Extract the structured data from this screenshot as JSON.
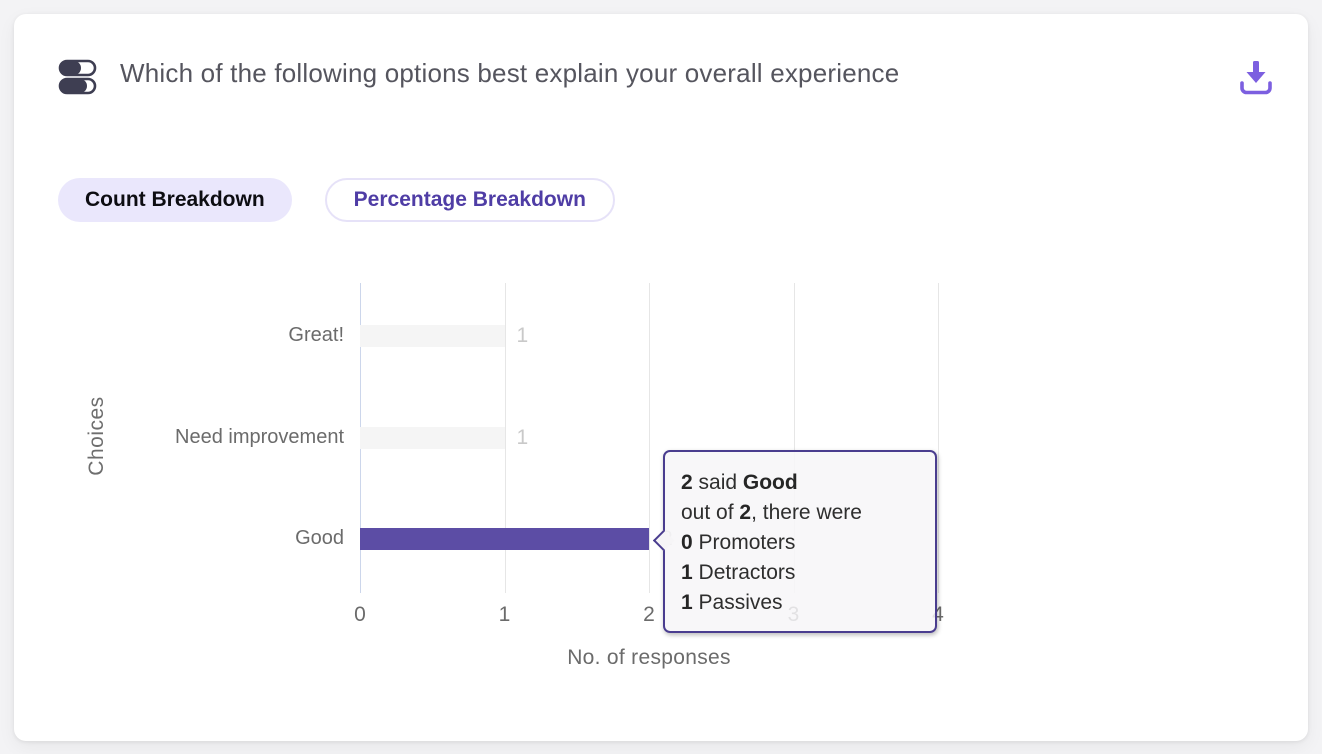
{
  "header": {
    "title": "Which of the following options best explain your overall experience",
    "question_icon": "toggle-options-icon",
    "download_icon": "download-icon"
  },
  "tabs": {
    "count_label": "Count Breakdown",
    "percentage_label": "Percentage Breakdown",
    "active_tab": "Count Breakdown"
  },
  "chart_data": {
    "type": "bar",
    "orientation": "horizontal",
    "categories": [
      "Great!",
      "Need improvement",
      "Good"
    ],
    "values": [
      1,
      1,
      2
    ],
    "value_labels": [
      "1",
      "1",
      "2"
    ],
    "bar_colors": [
      "#f5f5f5",
      "#f5f5f5",
      "#5c4da5"
    ],
    "xlabel": "No. of responses",
    "ylabel": "Choices",
    "xlim": [
      0,
      4
    ],
    "xticks": [
      "0",
      "1",
      "2",
      "3",
      "4"
    ],
    "grid": "vertical-only",
    "legend": "none"
  },
  "tooltip": {
    "attached_to": "Good",
    "lines": [
      {
        "parts": [
          {
            "text": "2",
            "bold": true
          },
          {
            "text": " said ",
            "bold": false
          },
          {
            "text": "Good",
            "bold": true
          }
        ]
      },
      {
        "parts": [
          {
            "text": "out of ",
            "bold": false
          },
          {
            "text": "2",
            "bold": true
          },
          {
            "text": ", there were",
            "bold": false
          }
        ]
      },
      {
        "parts": [
          {
            "text": "0",
            "bold": true
          },
          {
            "text": " Promoters",
            "bold": false
          }
        ]
      },
      {
        "parts": [
          {
            "text": "1",
            "bold": true
          },
          {
            "text": " Detractors",
            "bold": false
          }
        ]
      },
      {
        "parts": [
          {
            "text": "1",
            "bold": true
          },
          {
            "text": " Passives",
            "bold": false
          }
        ]
      }
    ]
  },
  "colors": {
    "accent_purple": "#5c4da5",
    "tab_text_purple": "#4f3da5",
    "tab_active_bg": "#eae7fc",
    "tooltip_border": "#4a3d8f",
    "download_purple": "#7c5fe0",
    "axis_line": "#ccd6eb",
    "gridline": "#e6e6e6",
    "muted_value_label": "#c9c9c9",
    "chart_text": "#6b6b6b",
    "icon_navy": "#3e3e52"
  }
}
